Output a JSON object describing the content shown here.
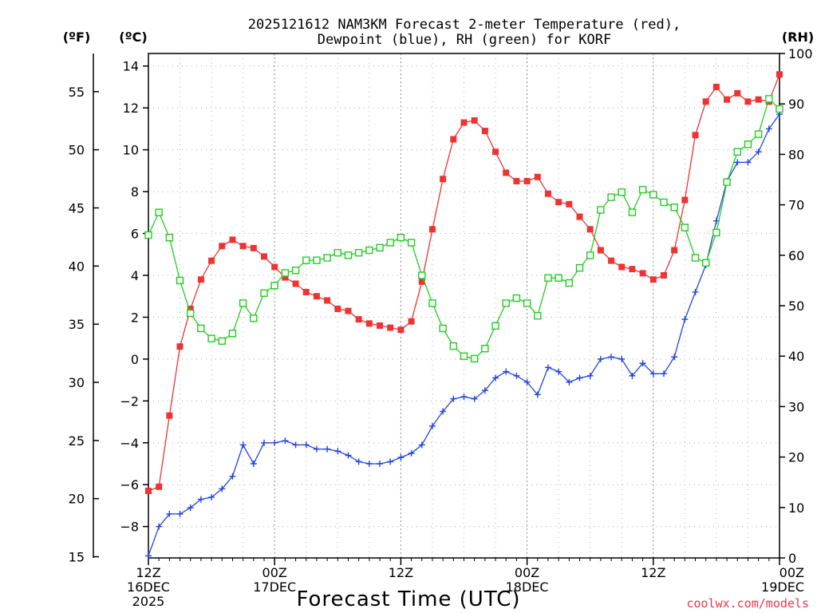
{
  "chart_data": {
    "type": "line",
    "title_line1": "2025121612 NAM3KM Forecast 2-meter Temperature (red),",
    "title_line2": "Dewpoint (blue), RH (green) for KORF",
    "units": {
      "fahrenheit": "(ºF)",
      "celsius": "(ºC)",
      "rh": "(RH)"
    },
    "xlabel": "Forecast Time (UTC)",
    "credit": "coolwx.com/models",
    "x_hours_range": [
      0,
      60
    ],
    "x_ticks": [
      {
        "hour": 0,
        "lines": [
          "12Z",
          "16DEC",
          "2025"
        ]
      },
      {
        "hour": 12,
        "lines": [
          "00Z",
          "17DEC"
        ]
      },
      {
        "hour": 24,
        "lines": [
          "12Z"
        ]
      },
      {
        "hour": 36,
        "lines": [
          "00Z",
          "18DEC"
        ]
      },
      {
        "hour": 48,
        "lines": [
          "12Z"
        ]
      },
      {
        "hour": 60,
        "lines": [
          "00Z",
          "19DEC"
        ]
      }
    ],
    "ylim_celsius": [
      -9.5,
      14.6
    ],
    "y_ticks_celsius": [
      -8,
      -6,
      -4,
      -2,
      0,
      2,
      4,
      6,
      8,
      10,
      12,
      14
    ],
    "y_ticks_fahrenheit": [
      15,
      20,
      25,
      30,
      35,
      40,
      45,
      50,
      55
    ],
    "ylim_rh": [
      0,
      100
    ],
    "y_ticks_rh": [
      0,
      10,
      20,
      30,
      40,
      50,
      60,
      70,
      80,
      90,
      100
    ],
    "x_hours": [
      0,
      1,
      2,
      3,
      4,
      5,
      6,
      7,
      8,
      9,
      10,
      11,
      12,
      13,
      14,
      15,
      16,
      17,
      18,
      19,
      20,
      21,
      22,
      23,
      24,
      25,
      26,
      27,
      28,
      29,
      30,
      31,
      32,
      33,
      34,
      35,
      36,
      37,
      38,
      39,
      40,
      41,
      42,
      43,
      44,
      45,
      46,
      47,
      48,
      49,
      50,
      51,
      52,
      53,
      54,
      55,
      56,
      57,
      58,
      59,
      60
    ],
    "series": [
      {
        "name": "Temperature",
        "color": "#ee3333",
        "marker": "filled-square",
        "axis": "celsius",
        "values": [
          -6.3,
          -6.1,
          -2.7,
          0.6,
          2.4,
          3.8,
          4.7,
          5.4,
          5.7,
          5.4,
          5.3,
          4.9,
          4.4,
          3.9,
          3.6,
          3.2,
          3.0,
          2.8,
          2.4,
          2.3,
          1.9,
          1.7,
          1.6,
          1.5,
          1.4,
          1.8,
          3.7,
          6.2,
          8.6,
          10.5,
          11.3,
          11.4,
          10.9,
          9.9,
          8.9,
          8.5,
          8.5,
          8.7,
          7.9,
          7.5,
          7.4,
          6.8,
          6.2,
          5.2,
          4.7,
          4.4,
          4.3,
          4.1,
          3.8,
          4.0,
          5.2,
          7.6,
          10.7,
          12.3,
          13.0,
          12.4,
          12.7,
          12.3,
          12.4,
          12.3,
          13.6
        ]
      },
      {
        "name": "Dewpoint",
        "color": "#2244dd",
        "marker": "plus",
        "axis": "celsius",
        "values": [
          -9.4,
          -8.0,
          -7.4,
          -7.4,
          -7.1,
          -6.7,
          -6.6,
          -6.2,
          -5.6,
          -4.1,
          -5.0,
          -4.0,
          -4.0,
          -3.9,
          -4.1,
          -4.1,
          -4.3,
          -4.3,
          -4.4,
          -4.6,
          -4.9,
          -5.0,
          -5.0,
          -4.9,
          -4.7,
          -4.5,
          -4.1,
          -3.2,
          -2.5,
          -1.9,
          -1.8,
          -1.9,
          -1.5,
          -0.9,
          -0.6,
          -0.8,
          -1.1,
          -1.7,
          -0.4,
          -0.6,
          -1.1,
          -0.9,
          -0.8,
          0.0,
          0.1,
          0.0,
          -0.8,
          -0.2,
          -0.7,
          -0.7,
          0.1,
          1.9,
          3.2,
          4.5,
          6.6,
          8.5,
          9.4,
          9.4,
          9.9,
          11.0,
          11.7
        ]
      },
      {
        "name": "RH",
        "color": "#22cc22",
        "marker": "open-square",
        "axis": "rh",
        "values": [
          64.0,
          68.5,
          63.5,
          55.0,
          48.5,
          45.5,
          43.5,
          43.0,
          44.5,
          50.5,
          47.5,
          52.5,
          54.0,
          56.5,
          57.0,
          59.0,
          59.0,
          59.5,
          60.5,
          60.0,
          60.5,
          61.0,
          61.5,
          62.5,
          63.5,
          62.5,
          56.0,
          50.5,
          45.5,
          42.0,
          40.0,
          39.5,
          41.5,
          46.0,
          50.5,
          51.5,
          50.5,
          48.0,
          55.5,
          55.5,
          54.5,
          57.5,
          60.0,
          69.0,
          71.5,
          72.5,
          68.5,
          73.0,
          72.0,
          70.5,
          69.5,
          65.5,
          59.5,
          58.5,
          64.5,
          74.5,
          80.5,
          82.0,
          84.0,
          91.0,
          89.0
        ]
      }
    ]
  }
}
